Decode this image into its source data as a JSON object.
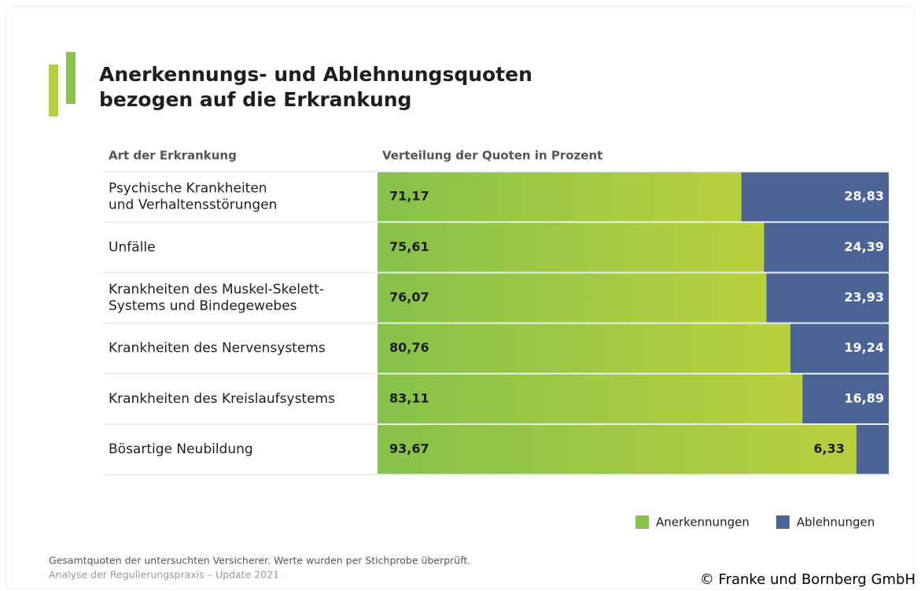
{
  "chart_data": {
    "type": "stacked_barh",
    "title": [
      "Anerkennungs- und Ablehnungsquoten",
      "bezogen auf die Erkrankung"
    ],
    "category_header": "Art der Erkrankung",
    "value_header": "Verteilung der Quoten in Prozent",
    "categories": [
      [
        "Psychische Krankheiten",
        "und Verhaltensstörungen"
      ],
      [
        "Unfälle"
      ],
      [
        "Krankheiten des Muskel-Skelett-",
        "Systems und Bindegewebes"
      ],
      [
        "Krankheiten des Nervensystems"
      ],
      [
        "Krankheiten des Kreislaufsystems"
      ],
      [
        "Bösartige Neubildung"
      ]
    ],
    "series": [
      {
        "name": "Anerkennungen",
        "color": "#86c24a",
        "values": [
          71.17,
          75.61,
          76.07,
          80.76,
          83.11,
          93.67
        ],
        "value_labels": [
          "71,17",
          "75,61",
          "76,07",
          "80,76",
          "83,11",
          "93,67"
        ]
      },
      {
        "name": "Ablehnungen",
        "color": "#4a6496",
        "values": [
          28.83,
          24.39,
          23.93,
          19.24,
          16.89,
          6.33
        ],
        "value_labels": [
          "28,83",
          "24,39",
          "23,93",
          "19,24",
          "16,89",
          "6,33"
        ]
      }
    ],
    "xlim": [
      0,
      100
    ],
    "legend": "bottom-right",
    "notes": [
      "Gesamtquoten der untersuchten Versicherer. Werte wurden per Stichprobe überprüft.",
      "Analyse der Regulierungspraxis – Update 2021"
    ],
    "copyright": "© Franke und Bornberg GmbH"
  }
}
